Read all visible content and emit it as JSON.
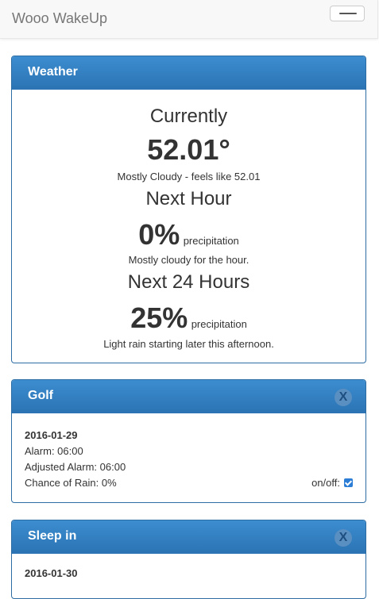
{
  "navbar": {
    "brand": "Wooo WakeUp",
    "menu_icon": "hamburger-icon"
  },
  "weather": {
    "heading": "Weather",
    "currently_label": "Currently",
    "temperature": "52.01°",
    "current_summary": "Mostly Cloudy - feels like 52.01",
    "next_hour_label": "Next Hour",
    "next_hour_pct": "0%",
    "next_hour_unit": "precipitation",
    "next_hour_summary": "Mostly cloudy for the hour.",
    "next_24_label": "Next 24 Hours",
    "next_24_pct": "25%",
    "next_24_unit": "precipitation",
    "next_24_summary": "Light rain starting later this afternoon."
  },
  "events": [
    {
      "title": "Golf",
      "close": "X",
      "date": "2016-01-29",
      "alarm": "Alarm: 06:00",
      "adjusted": "Adjusted Alarm: 06:00",
      "rain": "Chance of Rain: 0%",
      "toggle_label": "on/off:",
      "enabled": true
    },
    {
      "title": "Sleep in",
      "close": "X",
      "date": "2016-01-30"
    }
  ],
  "colors": {
    "panel_primary": "#337ab7",
    "navbar_bg": "#f8f8f8"
  }
}
